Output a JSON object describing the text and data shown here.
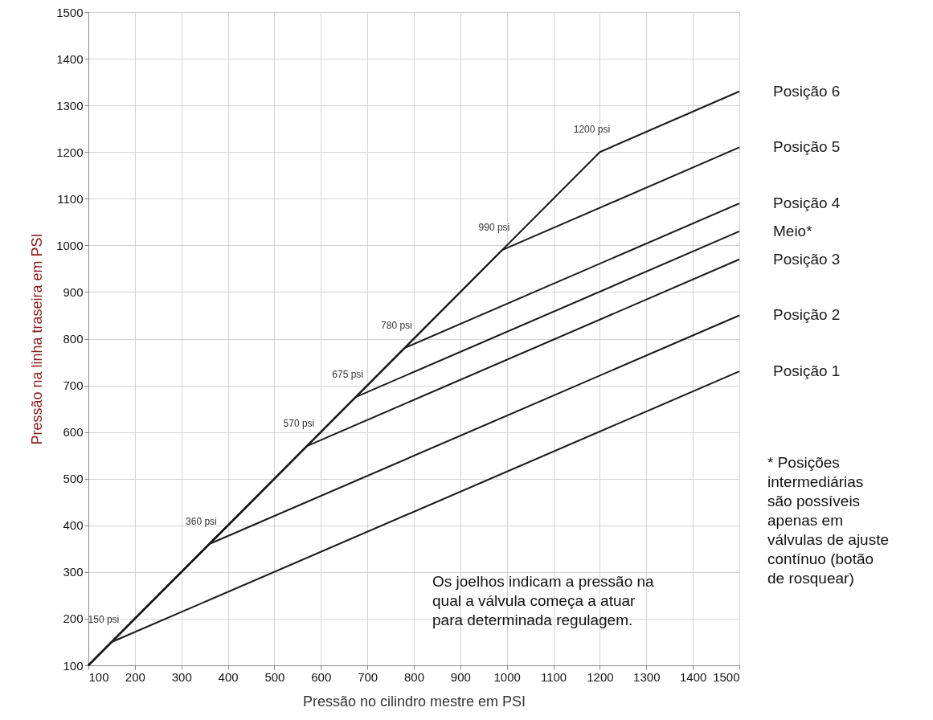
{
  "chart_data": {
    "type": "line",
    "xlabel": "Pressão no cilindro mestre em PSI",
    "ylabel": "Pressão na linha traseira em PSI",
    "xlim": [
      100,
      1500
    ],
    "ylim": [
      100,
      1500
    ],
    "xticks": [
      100,
      200,
      300,
      400,
      500,
      600,
      700,
      800,
      900,
      1000,
      1100,
      1200,
      1300,
      1400,
      1500
    ],
    "yticks": [
      100,
      200,
      300,
      400,
      500,
      600,
      700,
      800,
      900,
      1000,
      1100,
      1200,
      1300,
      1400,
      1500
    ],
    "grid": true,
    "marker": "none",
    "line_style": "solid",
    "series": [
      {
        "name": "Posição 6",
        "color": "#1a1a1a",
        "x": [
          100,
          1200,
          1500
        ],
        "values": [
          100,
          1200,
          1330
        ]
      },
      {
        "name": "Posição 5",
        "color": "#1a1a1a",
        "x": [
          100,
          990,
          1500
        ],
        "values": [
          100,
          990,
          1210
        ]
      },
      {
        "name": "Posição 4",
        "color": "#1a1a1a",
        "x": [
          100,
          780,
          1500
        ],
        "values": [
          100,
          780,
          1090
        ]
      },
      {
        "name": "Meio*",
        "color": "#1a1a1a",
        "x": [
          100,
          675,
          1500
        ],
        "values": [
          100,
          675,
          1030
        ]
      },
      {
        "name": "Posição 3",
        "color": "#1a1a1a",
        "x": [
          100,
          570,
          1500
        ],
        "values": [
          100,
          570,
          970
        ]
      },
      {
        "name": "Posição 2",
        "color": "#1a1a1a",
        "x": [
          100,
          360,
          1500
        ],
        "values": [
          100,
          360,
          850
        ]
      },
      {
        "name": "Posição 1",
        "color": "#1a1a1a",
        "x": [
          100,
          150,
          1500
        ],
        "values": [
          100,
          150,
          730
        ]
      }
    ],
    "annotations": [
      {
        "text": "150 psi",
        "x": 150,
        "y": 150
      },
      {
        "text": "360 psi",
        "x": 360,
        "y": 360
      },
      {
        "text": "570 psi",
        "x": 570,
        "y": 570
      },
      {
        "text": "675 psi",
        "x": 675,
        "y": 675
      },
      {
        "text": "780 psi",
        "x": 780,
        "y": 780
      },
      {
        "text": "990 psi",
        "x": 990,
        "y": 990
      },
      {
        "text": "1200 psi",
        "x": 1200,
        "y": 1200
      },
      "Os joelhos indicam a pressão na\nqual a válvula começa a atuar\npara determinada regulagem.",
      "* Posições\nintermediárias\nsão possíveis\napenas em\nválvulas de ajuste\ncontínuo (botão\nde rosquear)"
    ]
  }
}
